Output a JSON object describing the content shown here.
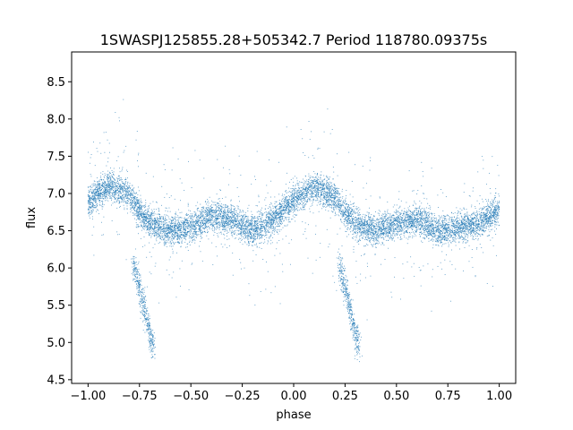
{
  "chart_data": {
    "type": "scatter",
    "title": "1SWASPJ125855.28+505342.7 Period 118780.09375s",
    "xlabel": "phase",
    "ylabel": "flux",
    "xlim": [
      -1.08,
      1.08
    ],
    "ylim": [
      4.45,
      8.9
    ],
    "xticks": [
      -1.0,
      -0.75,
      -0.5,
      -0.25,
      0.0,
      0.25,
      0.5,
      0.75,
      1.0
    ],
    "xtick_labels": [
      "−1.00",
      "−0.75",
      "−0.50",
      "−0.25",
      "0.00",
      "0.25",
      "0.50",
      "0.75",
      "1.00"
    ],
    "yticks": [
      4.5,
      5.0,
      5.5,
      6.0,
      6.5,
      7.0,
      7.5,
      8.0,
      8.5
    ],
    "ytick_labels": [
      "4.5",
      "5.0",
      "5.5",
      "6.0",
      "6.5",
      "7.0",
      "7.5",
      "8.0",
      "8.5"
    ],
    "grid": false,
    "point_color": "#1f77b4",
    "series": [
      {
        "x": [
          -1.0,
          -0.9,
          -0.8,
          -0.75,
          -0.7,
          -0.6,
          -0.5,
          -0.4,
          -0.3,
          -0.2,
          -0.1,
          0.0,
          0.1,
          0.2,
          0.25,
          0.3,
          0.4,
          0.5,
          0.6,
          0.7,
          0.8,
          0.9,
          1.0
        ],
        "y": [
          6.9,
          7.1,
          7.0,
          6.75,
          6.6,
          6.5,
          6.55,
          6.7,
          6.65,
          6.5,
          6.65,
          6.9,
          7.1,
          6.95,
          6.75,
          6.6,
          6.5,
          6.6,
          6.65,
          6.5,
          6.55,
          6.6,
          6.8
        ]
      }
    ],
    "dip_segments": [
      {
        "x": [
          -0.78,
          -0.68
        ],
        "y": [
          6.1,
          4.9
        ]
      },
      {
        "x": [
          0.22,
          0.32
        ],
        "y": [
          6.1,
          4.9
        ]
      }
    ]
  }
}
